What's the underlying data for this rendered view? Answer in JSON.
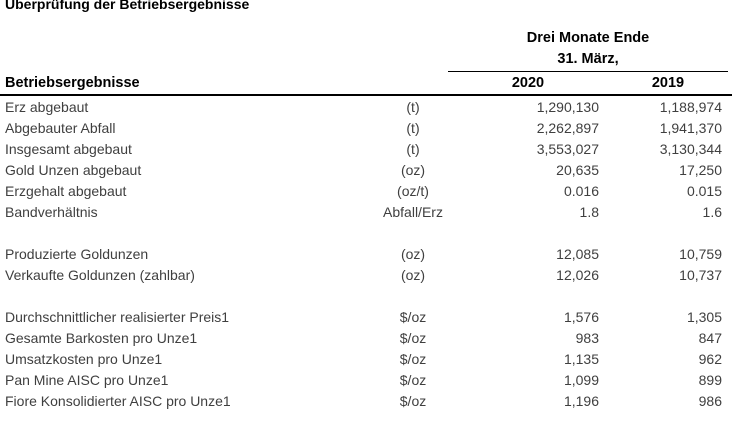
{
  "title": "Überprüfung der Betriebsergebnisse",
  "table": {
    "header": {
      "period_line1": "Drei Monate Ende",
      "period_line2": "31. März,",
      "group_label": "Betriebsergebnisse",
      "years": [
        "2020",
        "2019"
      ]
    },
    "sections": [
      {
        "rows": [
          {
            "label": "Erz abgebaut",
            "unit": "(t)",
            "values": [
              "1,290,130",
              "1,188,974"
            ]
          },
          {
            "label": "Abgebauter Abfall",
            "unit": "(t)",
            "values": [
              "2,262,897",
              "1,941,370"
            ]
          },
          {
            "label": "Insgesamt abgebaut",
            "unit": "(t)",
            "values": [
              "3,553,027",
              "3,130,344"
            ]
          },
          {
            "label": "Gold Unzen abgebaut",
            "unit": "(oz)",
            "values": [
              "20,635",
              "17,250"
            ]
          },
          {
            "label": "Erzgehalt abgebaut",
            "unit": "(oz/t)",
            "values": [
              "0.016",
              "0.015"
            ]
          },
          {
            "label": "Bandverhältnis",
            "unit": "Abfall/Erz",
            "values": [
              "1.8",
              "1.6"
            ]
          }
        ]
      },
      {
        "rows": [
          {
            "label": "Produzierte Goldunzen",
            "unit": "(oz)",
            "values": [
              "12,085",
              "10,759"
            ]
          },
          {
            "label": "Verkaufte Goldunzen (zahlbar)",
            "unit": "(oz)",
            "values": [
              "12,026",
              "10,737"
            ]
          }
        ]
      },
      {
        "rows": [
          {
            "label": "Durchschnittlicher realisierter Preis1",
            "unit": "$/oz",
            "values": [
              "1,576",
              "1,305"
            ]
          },
          {
            "label": "Gesamte Barkosten pro Unze1",
            "unit": "$/oz",
            "values": [
              "983",
              "847"
            ]
          },
          {
            "label": "Umsatzkosten pro Unze1",
            "unit": "$/oz",
            "values": [
              "1,135",
              "962"
            ]
          },
          {
            "label": "Pan Mine AISC pro Unze1",
            "unit": "$/oz",
            "values": [
              "1,099",
              "899"
            ]
          },
          {
            "label": "Fiore Konsolidierter AISC pro Unze1",
            "unit": "$/oz",
            "values": [
              "1,196",
              "986"
            ]
          }
        ]
      }
    ]
  },
  "colors": {
    "background": "#ffffff",
    "body_text": "#3f3f3f",
    "heading_text": "#000000",
    "rule": "#000000"
  }
}
